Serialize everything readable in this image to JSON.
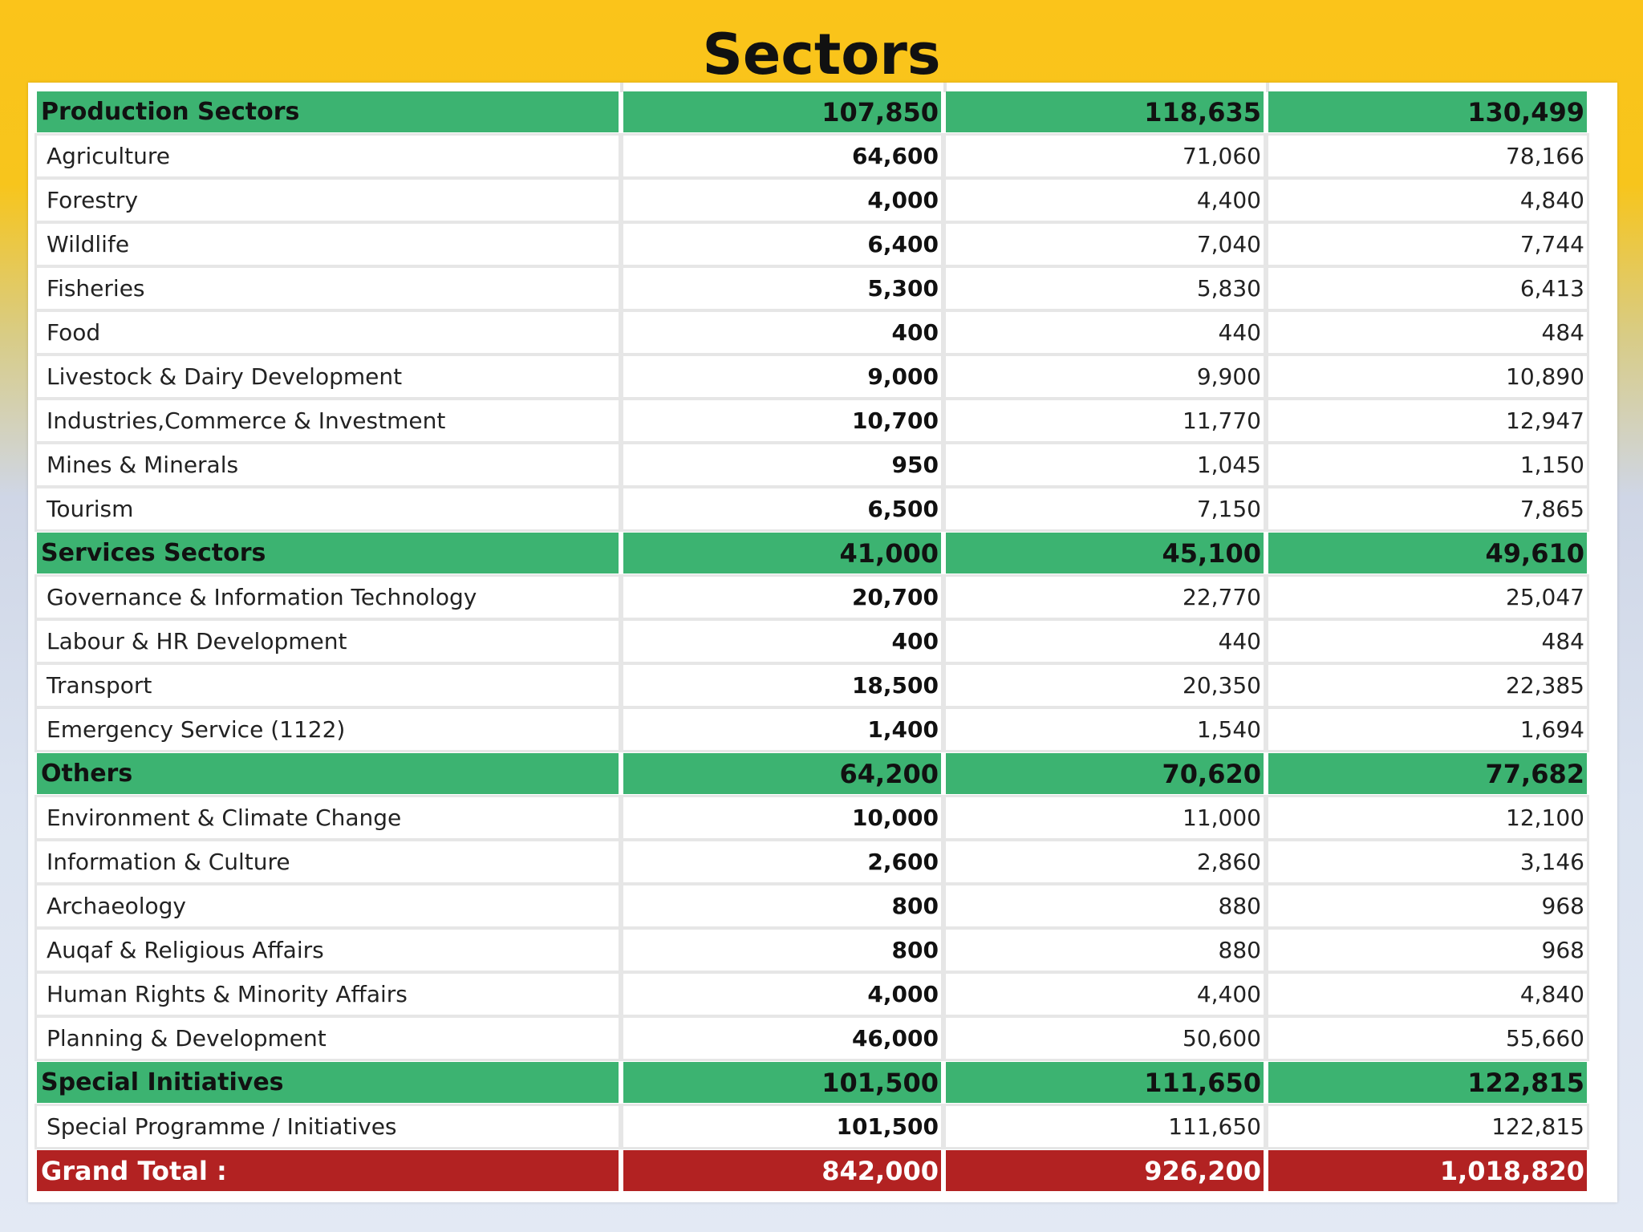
{
  "title": "Sectors",
  "colors": {
    "background_top": "#fbc41a",
    "background_bottom": "#e3e9f4",
    "group_row": "#3cb371",
    "total_row": "#b22222"
  },
  "table": {
    "groups": [
      {
        "label": "Production Sectors",
        "values": [
          "107,850",
          "118,635",
          "130,499"
        ],
        "rows": [
          {
            "label": "Agriculture",
            "values": [
              "64,600",
              "71,060",
              "78,166"
            ]
          },
          {
            "label": "Forestry",
            "values": [
              "4,000",
              "4,400",
              "4,840"
            ]
          },
          {
            "label": "Wildlife",
            "values": [
              "6,400",
              "7,040",
              "7,744"
            ]
          },
          {
            "label": "Fisheries",
            "values": [
              "5,300",
              "5,830",
              "6,413"
            ]
          },
          {
            "label": "Food",
            "values": [
              "400",
              "440",
              "484"
            ]
          },
          {
            "label": "Livestock & Dairy Development",
            "values": [
              "9,000",
              "9,900",
              "10,890"
            ]
          },
          {
            "label": "Industries,Commerce & Investment",
            "values": [
              "10,700",
              "11,770",
              "12,947"
            ]
          },
          {
            "label": "Mines & Minerals",
            "values": [
              "950",
              "1,045",
              "1,150"
            ]
          },
          {
            "label": "Tourism",
            "values": [
              "6,500",
              "7,150",
              "7,865"
            ]
          }
        ]
      },
      {
        "label": "Services Sectors",
        "values": [
          "41,000",
          "45,100",
          "49,610"
        ],
        "rows": [
          {
            "label": "Governance & Information Technology",
            "values": [
              "20,700",
              "22,770",
              "25,047"
            ]
          },
          {
            "label": "Labour & HR Development",
            "values": [
              "400",
              "440",
              "484"
            ]
          },
          {
            "label": "Transport",
            "values": [
              "18,500",
              "20,350",
              "22,385"
            ]
          },
          {
            "label": "Emergency Service (1122)",
            "values": [
              "1,400",
              "1,540",
              "1,694"
            ]
          }
        ]
      },
      {
        "label": "Others",
        "values": [
          "64,200",
          "70,620",
          "77,682"
        ],
        "rows": [
          {
            "label": "Environment & Climate Change",
            "values": [
              "10,000",
              "11,000",
              "12,100"
            ]
          },
          {
            "label": "Information & Culture",
            "values": [
              "2,600",
              "2,860",
              "3,146"
            ]
          },
          {
            "label": "Archaeology",
            "values": [
              "800",
              "880",
              "968"
            ]
          },
          {
            "label": "Auqaf & Religious Affairs",
            "values": [
              "800",
              "880",
              "968"
            ]
          },
          {
            "label": "Human Rights & Minority Affairs",
            "values": [
              "4,000",
              "4,400",
              "4,840"
            ]
          },
          {
            "label": "Planning & Development",
            "values": [
              "46,000",
              "50,600",
              "55,660"
            ]
          }
        ]
      },
      {
        "label": "Special Initiatives",
        "values": [
          "101,500",
          "111,650",
          "122,815"
        ],
        "rows": [
          {
            "label": "Special Programme / Initiatives",
            "values": [
              "101,500",
              "111,650",
              "122,815"
            ]
          }
        ]
      }
    ],
    "grand_total": {
      "label": "Grand Total :",
      "values": [
        "842,000",
        "926,200",
        "1,018,820"
      ]
    }
  }
}
